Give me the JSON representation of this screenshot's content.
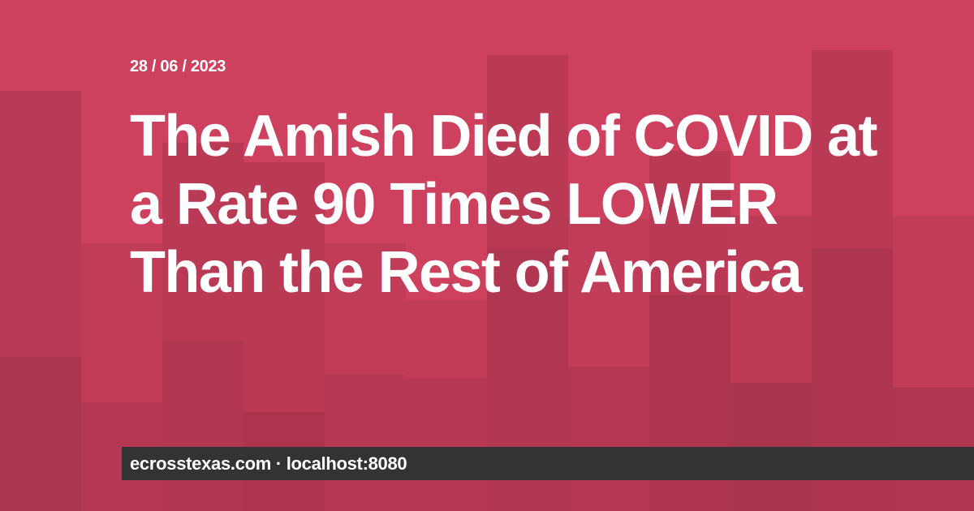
{
  "card": {
    "date": "28 / 06 / 2023",
    "title": "The Amish Died of COVID at a Rate 90 Times LOWER Than the Rest of America",
    "footer": "ecrosstexas.com · localhost:8080"
  },
  "colors": {
    "background": "#cd405e",
    "footer_background": "#333333",
    "text": "#ffffff"
  }
}
